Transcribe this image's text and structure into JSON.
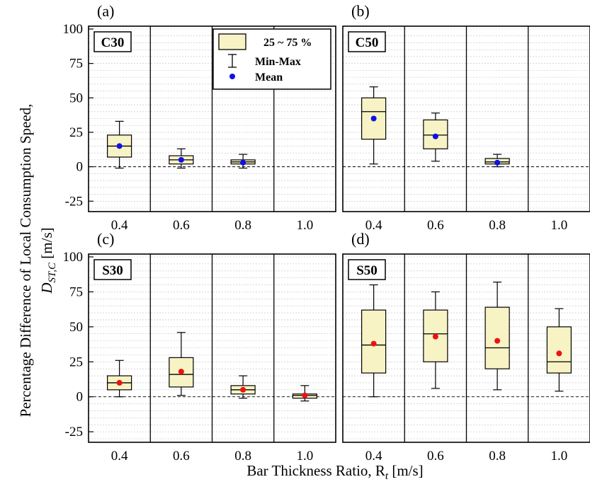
{
  "figure": {
    "ylabel_line1": "Percentage Difference of Local Consumption Speed,",
    "ylabel_line2_main": "D",
    "ylabel_line2_sub": "ST,C",
    "ylabel_line2_unit": " [m/s]",
    "xlabel_main": "Bar Thickness Ratio, R",
    "xlabel_sub": "t",
    "xlabel_unit": " [m/s]"
  },
  "legend": {
    "box_label": "25 ~ 75 %",
    "whisker_label": "Min-Max",
    "mean_label": "Mean"
  },
  "colors": {
    "box_fill": "#f7f3c4",
    "mean_blue": "#1010e6",
    "mean_red": "#ee1111",
    "grid": "#bfbfbf"
  },
  "chart_data": [
    {
      "type": "box",
      "panel": "(a)",
      "label": "C30",
      "categories": [
        "0.4",
        "0.6",
        "0.8",
        "1.0"
      ],
      "ylim": [
        -30,
        100
      ],
      "yticks": [
        "100",
        "75",
        "50",
        "25",
        "0",
        "-25"
      ],
      "mean_color": "blue",
      "boxes": [
        {
          "x": "0.4",
          "min": -1,
          "q1": 7,
          "median": 15,
          "q3": 23,
          "max": 33,
          "mean": 15
        },
        {
          "x": "0.6",
          "min": -1,
          "q1": 2,
          "median": 5,
          "q3": 8,
          "max": 13,
          "mean": 5
        },
        {
          "x": "0.8",
          "min": -1,
          "q1": 2,
          "median": 3.5,
          "q3": 5,
          "max": 9,
          "mean": 3
        }
      ]
    },
    {
      "type": "box",
      "panel": "(b)",
      "label": "C50",
      "categories": [
        "0.4",
        "0.6",
        "0.8",
        "1.0"
      ],
      "ylim": [
        -30,
        100
      ],
      "yticks": [],
      "mean_color": "blue",
      "boxes": [
        {
          "x": "0.4",
          "min": 2,
          "q1": 20,
          "median": 40,
          "q3": 50,
          "max": 58,
          "mean": 35
        },
        {
          "x": "0.6",
          "min": 4,
          "q1": 13,
          "median": 23,
          "q3": 34,
          "max": 39,
          "mean": 22
        },
        {
          "x": "0.8",
          "min": 0,
          "q1": 2,
          "median": 3.5,
          "q3": 6,
          "max": 9,
          "mean": 3
        }
      ]
    },
    {
      "type": "box",
      "panel": "(c)",
      "label": "S30",
      "categories": [
        "0.4",
        "0.6",
        "0.8",
        "1.0"
      ],
      "ylim": [
        -30,
        100
      ],
      "yticks": [
        "100",
        "75",
        "50",
        "25",
        "0",
        "-25"
      ],
      "mean_color": "red",
      "boxes": [
        {
          "x": "0.4",
          "min": 0,
          "q1": 5,
          "median": 10,
          "q3": 15,
          "max": 26,
          "mean": 10
        },
        {
          "x": "0.6",
          "min": 1,
          "q1": 7,
          "median": 16,
          "q3": 28,
          "max": 46,
          "mean": 18
        },
        {
          "x": "0.8",
          "min": -1,
          "q1": 2,
          "median": 5,
          "q3": 8,
          "max": 15,
          "mean": 5
        },
        {
          "x": "1.0",
          "min": -3,
          "q1": -1,
          "median": 1,
          "q3": 2,
          "max": 8,
          "mean": 1
        }
      ]
    },
    {
      "type": "box",
      "panel": "(d)",
      "label": "S50",
      "categories": [
        "0.4",
        "0.6",
        "0.8",
        "1.0"
      ],
      "ylim": [
        -30,
        100
      ],
      "yticks": [],
      "mean_color": "red",
      "boxes": [
        {
          "x": "0.4",
          "min": 0,
          "q1": 17,
          "median": 37,
          "q3": 62,
          "max": 80,
          "mean": 38
        },
        {
          "x": "0.6",
          "min": 6,
          "q1": 25,
          "median": 45,
          "q3": 62,
          "max": 75,
          "mean": 43
        },
        {
          "x": "0.8",
          "min": 5,
          "q1": 20,
          "median": 35,
          "q3": 64,
          "max": 82,
          "mean": 40
        },
        {
          "x": "1.0",
          "min": 4,
          "q1": 17,
          "median": 25,
          "q3": 50,
          "max": 63,
          "mean": 31
        }
      ]
    }
  ]
}
